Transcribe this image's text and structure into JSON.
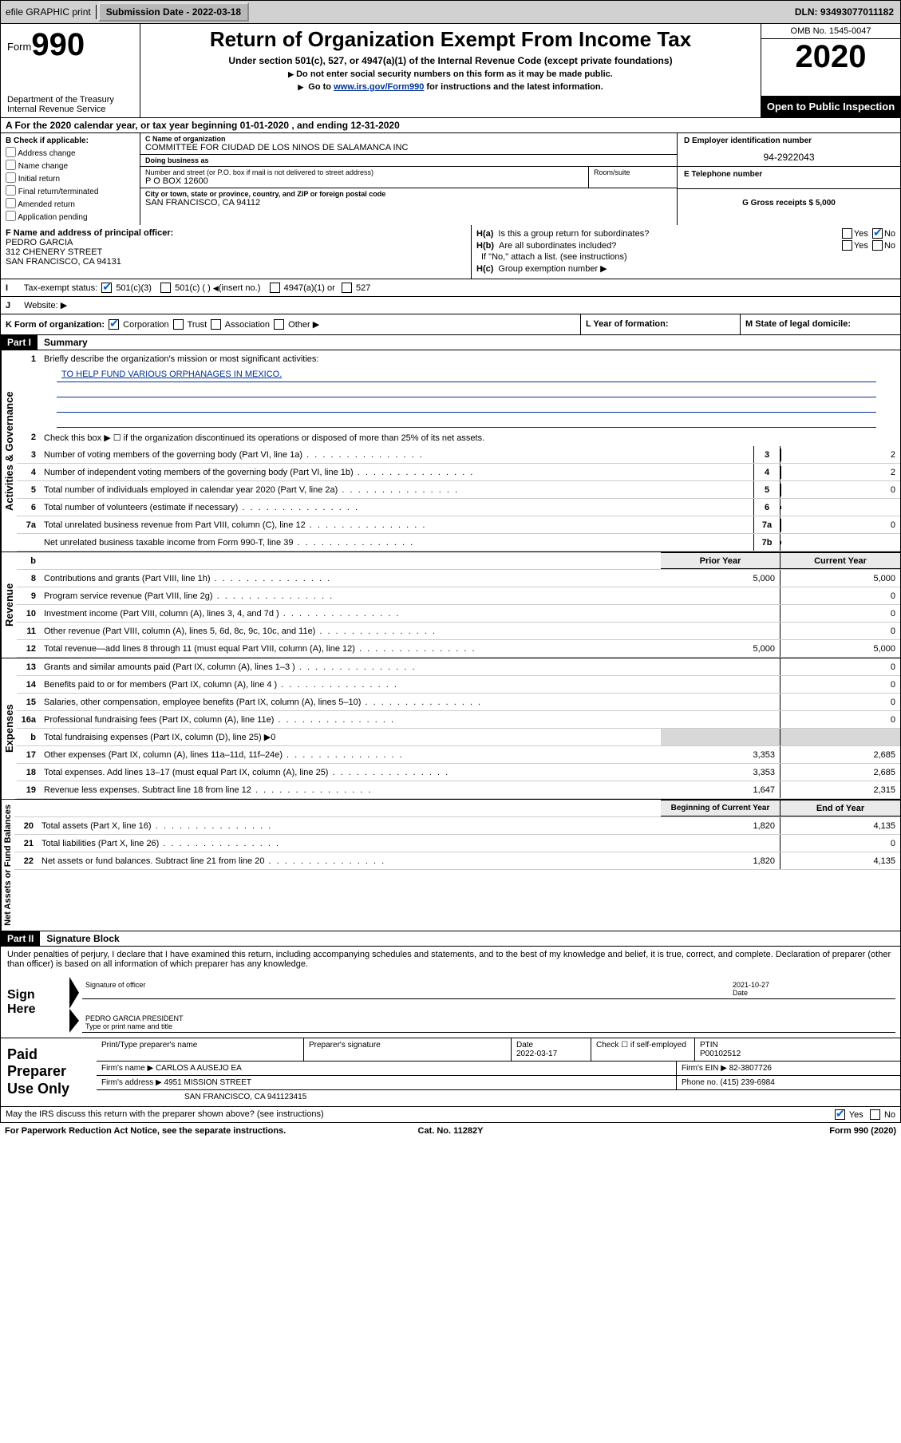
{
  "topbar": {
    "efile": "efile GRAPHIC print",
    "sub_lbl": "Submission Date - 2022-03-18",
    "dln": "DLN: 93493077011182"
  },
  "header": {
    "form_word": "Form",
    "form_num": "990",
    "dept": "Department of the Treasury\nInternal Revenue Service",
    "title": "Return of Organization Exempt From Income Tax",
    "sub1": "Under section 501(c), 527, or 4947(a)(1) of the Internal Revenue Code (except private foundations)",
    "sub2": "Do not enter social security numbers on this form as it may be made public.",
    "sub3_pre": "Go to ",
    "sub3_link": "www.irs.gov/Form990",
    "sub3_post": " for instructions and the latest information.",
    "omb": "OMB No. 1545-0047",
    "year": "2020",
    "inspect": "Open to Public Inspection"
  },
  "rowA": "A   For the 2020 calendar year, or tax year beginning 01-01-2020    , and ending 12-31-2020",
  "boxB": {
    "hdr": "B Check if applicable:",
    "items": [
      "Address change",
      "Name change",
      "Initial return",
      "Final return/terminated",
      "Amended return",
      "Application pending"
    ]
  },
  "boxC": {
    "name_lbl": "C Name of organization",
    "name": "COMMITTEE FOR CIUDAD DE LOS NINOS DE SALAMANCA INC",
    "dba_lbl": "Doing business as",
    "dba": "",
    "addr_lbl": "Number and street (or P.O. box if mail is not delivered to street address)",
    "room_lbl": "Room/suite",
    "addr": "P O BOX 12600",
    "city_lbl": "City or town, state or province, country, and ZIP or foreign postal code",
    "city": "SAN FRANCISCO, CA  94112"
  },
  "boxD": {
    "ein_lbl": "D Employer identification number",
    "ein": "94-2922043",
    "tel_lbl": "E Telephone number",
    "tel": "",
    "gross_lbl": "G Gross receipts $ 5,000"
  },
  "rowF": {
    "lbl": "F  Name and address of principal officer:",
    "name": "PEDRO GARCIA",
    "addr1": "312 CHENERY STREET",
    "addr2": "SAN FRANCISCO, CA  94131"
  },
  "rowH": {
    "ha": "Is this a group return for subordinates?",
    "hb": "Are all subordinates included?",
    "hb2": "If \"No,\" attach a list. (see instructions)",
    "hc": "Group exemption number ▶"
  },
  "rowI": {
    "lbl": "Tax-exempt status:",
    "o1": "501(c)(3)",
    "o2": "501(c) (   ) ",
    "o2b": "(insert no.)",
    "o3": "4947(a)(1) or",
    "o4": "527"
  },
  "rowJ": {
    "lbl": "Website: ▶"
  },
  "rowK": {
    "k": "K Form of organization:",
    "k1": "Corporation",
    "k2": "Trust",
    "k3": "Association",
    "k4": "Other ▶",
    "l": "L Year of formation:",
    "m": "M State of legal domicile:"
  },
  "part1": {
    "hdr": "Part I",
    "title": "Summary"
  },
  "summary": {
    "q1": "Briefly describe the organization's mission or most significant activities:",
    "mission": "TO HELP FUND VARIOUS ORPHANAGES IN MEXICO.",
    "q2": "Check this box ▶ ☐  if the organization discontinued its operations or disposed of more than 25% of its net assets.",
    "lines_gov": [
      {
        "n": "3",
        "t": "Number of voting members of the governing body (Part VI, line 1a)",
        "ln": "3",
        "v": "2"
      },
      {
        "n": "4",
        "t": "Number of independent voting members of the governing body (Part VI, line 1b)",
        "ln": "4",
        "v": "2"
      },
      {
        "n": "5",
        "t": "Total number of individuals employed in calendar year 2020 (Part V, line 2a)",
        "ln": "5",
        "v": "0"
      },
      {
        "n": "6",
        "t": "Total number of volunteers (estimate if necessary)",
        "ln": "6",
        "v": ""
      },
      {
        "n": "7a",
        "t": "Total unrelated business revenue from Part VIII, column (C), line 12",
        "ln": "7a",
        "v": "0"
      },
      {
        "n": "",
        "t": "Net unrelated business taxable income from Form 990-T, line 39",
        "ln": "7b",
        "v": ""
      }
    ],
    "colhdr_b": "b",
    "colhdr_py": "Prior Year",
    "colhdr_cy": "Current Year",
    "lines_rev": [
      {
        "n": "8",
        "t": "Contributions and grants (Part VIII, line 1h)",
        "py": "5,000",
        "cy": "5,000"
      },
      {
        "n": "9",
        "t": "Program service revenue (Part VIII, line 2g)",
        "py": "",
        "cy": "0"
      },
      {
        "n": "10",
        "t": "Investment income (Part VIII, column (A), lines 3, 4, and 7d )",
        "py": "",
        "cy": "0"
      },
      {
        "n": "11",
        "t": "Other revenue (Part VIII, column (A), lines 5, 6d, 8c, 9c, 10c, and 11e)",
        "py": "",
        "cy": "0"
      },
      {
        "n": "12",
        "t": "Total revenue—add lines 8 through 11 (must equal Part VIII, column (A), line 12)",
        "py": "5,000",
        "cy": "5,000"
      }
    ],
    "lines_exp": [
      {
        "n": "13",
        "t": "Grants and similar amounts paid (Part IX, column (A), lines 1–3 )",
        "py": "",
        "cy": "0"
      },
      {
        "n": "14",
        "t": "Benefits paid to or for members (Part IX, column (A), line 4 )",
        "py": "",
        "cy": "0"
      },
      {
        "n": "15",
        "t": "Salaries, other compensation, employee benefits (Part IX, column (A), lines 5–10)",
        "py": "",
        "cy": "0"
      },
      {
        "n": "16a",
        "t": "Professional fundraising fees (Part IX, column (A), line 11e)",
        "py": "",
        "cy": "0"
      }
    ],
    "line16b": "Total fundraising expenses (Part IX, column (D), line 25) ▶0",
    "lines_exp2": [
      {
        "n": "17",
        "t": "Other expenses (Part IX, column (A), lines 11a–11d, 11f–24e)",
        "py": "3,353",
        "cy": "2,685"
      },
      {
        "n": "18",
        "t": "Total expenses. Add lines 13–17 (must equal Part IX, column (A), line 25)",
        "py": "3,353",
        "cy": "2,685"
      },
      {
        "n": "19",
        "t": "Revenue less expenses. Subtract line 18 from line 12",
        "py": "1,647",
        "cy": "2,315"
      }
    ],
    "colhdr_bcy": "Beginning of Current Year",
    "colhdr_eoy": "End of Year",
    "lines_na": [
      {
        "n": "20",
        "t": "Total assets (Part X, line 16)",
        "py": "1,820",
        "cy": "4,135"
      },
      {
        "n": "21",
        "t": "Total liabilities (Part X, line 26)",
        "py": "",
        "cy": "0"
      },
      {
        "n": "22",
        "t": "Net assets or fund balances. Subtract line 21 from line 20",
        "py": "1,820",
        "cy": "4,135"
      }
    ]
  },
  "vtabs": {
    "gov": "Activities & Governance",
    "rev": "Revenue",
    "exp": "Expenses",
    "na": "Net Assets or Fund Balances"
  },
  "part2": {
    "hdr": "Part II",
    "title": "Signature Block"
  },
  "sig": {
    "intro": "Under penalties of perjury, I declare that I have examined this return, including accompanying schedules and statements, and to the best of my knowledge and belief, it is true, correct, and complete. Declaration of preparer (other than officer) is based on all information of which preparer has any knowledge.",
    "here": "Sign Here",
    "sig_of": "Signature of officer",
    "date": "2021-10-27",
    "date_lbl": "Date",
    "name": "PEDRO GARCIA PRESIDENT",
    "name_lbl": "Type or print name and title"
  },
  "prep": {
    "hdr": "Paid Preparer Use Only",
    "r1": {
      "c1": "Print/Type preparer's name",
      "c2": "Preparer's signature",
      "c3": "Date",
      "c3v": "2022-03-17",
      "c4": "Check ☐ if self-employed",
      "c5": "PTIN",
      "c5v": "P00102512"
    },
    "r2": {
      "c1": "Firm's name    ▶ CARLOS A AUSEJO EA",
      "c5": "Firm's EIN ▶ 82-3807726"
    },
    "r3": {
      "c1": "Firm's address ▶ 4951 MISSION STREET",
      "c5": "Phone no. (415) 239-6984"
    },
    "r4": {
      "c1": "SAN FRANCISCO, CA  941123415"
    }
  },
  "footer": {
    "q": "May the IRS discuss this return with the preparer shown above? (see instructions)",
    "yes": "Yes",
    "no": "No"
  },
  "bottom": {
    "l": "For Paperwork Reduction Act Notice, see the separate instructions.",
    "c": "Cat. No. 11282Y",
    "r": "Form 990 (2020)"
  }
}
